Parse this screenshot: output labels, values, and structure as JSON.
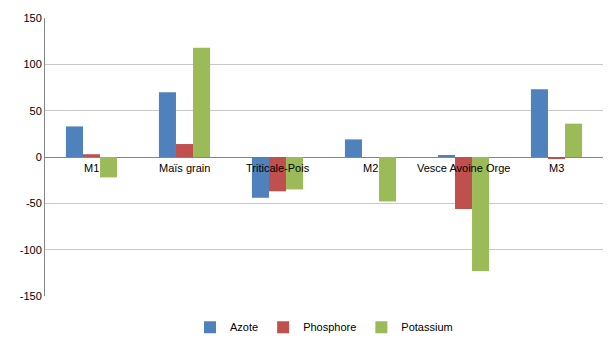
{
  "chart_data": {
    "type": "bar",
    "categories": [
      "M1",
      "Maïs grain",
      "Triticale-Pois",
      "M2",
      "Vesce Avoine Orge",
      "M3"
    ],
    "series": [
      {
        "name": "Azote",
        "color": "#4f81bd",
        "values": [
          33,
          70,
          -44,
          19,
          2,
          73
        ]
      },
      {
        "name": "Phosphore",
        "color": "#c0504d",
        "values": [
          3,
          14,
          -37,
          0,
          -56,
          -2
        ]
      },
      {
        "name": "Potassium",
        "color": "#9bbb59",
        "values": [
          -22,
          118,
          -35,
          -48,
          -123,
          36
        ]
      }
    ],
    "ylim": [
      -150,
      150
    ],
    "yticks": [
      -150,
      -100,
      -50,
      0,
      50,
      100,
      150
    ],
    "grid": true,
    "legend": "bottom",
    "tick_labels": "y"
  }
}
